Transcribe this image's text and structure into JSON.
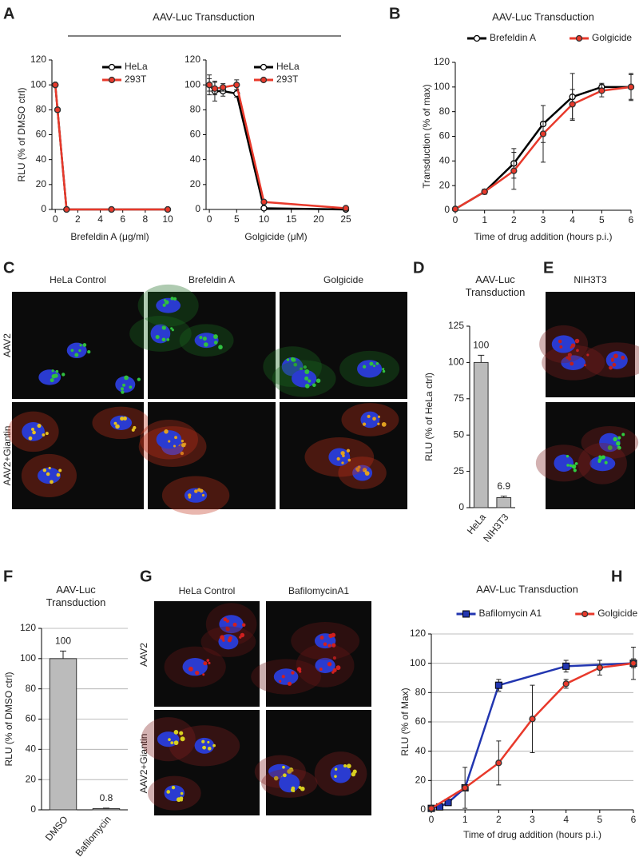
{
  "figure": {
    "letters": [
      "A",
      "B",
      "C",
      "D",
      "E",
      "F",
      "G",
      "H"
    ],
    "panel_a_title": "AAV-Luc Transduction",
    "panel_c": {
      "columns": [
        "HeLa Control",
        "Brefeldin A",
        "Golgicide"
      ],
      "rows": [
        "AAV2",
        "AAV2+Giantin"
      ]
    },
    "panel_e": {
      "columns": [
        "NIH3T3"
      ]
    },
    "panel_g": {
      "columns": [
        "HeLa Control",
        "BafilomycinA1"
      ],
      "rows": [
        "AAV2",
        "AAV2+Giantin"
      ]
    }
  },
  "chart_data": [
    {
      "type": "line",
      "xlabel": "Brefeldin A (μg/ml)",
      "ylabel": "RLU (% of DMSO ctrl)",
      "x": [
        0,
        0.2,
        1,
        5,
        10
      ],
      "xlim": [
        -0.3,
        10
      ],
      "xticks": [
        0,
        2,
        4,
        6,
        8,
        10
      ],
      "ylim": [
        0,
        120
      ],
      "yticks": [
        0,
        20,
        40,
        60,
        80,
        100,
        120
      ],
      "legend": "top-right",
      "series": [
        {
          "name": "HeLa",
          "color": "#000000",
          "marker": "open-circle",
          "values": [
            100,
            80,
            0,
            0,
            0
          ]
        },
        {
          "name": "293T",
          "color": "#e8392b",
          "marker": "circle",
          "values": [
            100,
            80,
            0,
            0,
            0
          ]
        }
      ]
    },
    {
      "type": "line",
      "xlabel": "Golgicide (μM)",
      "x": [
        0,
        1,
        2.5,
        5,
        10,
        25
      ],
      "xlim": [
        -0.6,
        25
      ],
      "xticks": [
        0,
        5,
        10,
        15,
        20,
        25
      ],
      "ylim": [
        0,
        120
      ],
      "yticks": [
        0,
        20,
        40,
        60,
        80,
        100,
        120
      ],
      "legend": "top-right",
      "series": [
        {
          "name": "HeLa",
          "color": "#000000",
          "marker": "open-circle",
          "values": [
            100,
            95,
            95,
            93,
            1,
            0
          ],
          "errors": [
            5,
            8,
            4,
            3,
            0,
            0
          ]
        },
        {
          "name": "293T",
          "color": "#e8392b",
          "marker": "circle",
          "values": [
            100,
            97,
            98,
            100,
            6,
            1
          ],
          "errors": [
            8,
            5,
            3,
            4,
            1,
            1
          ]
        }
      ]
    },
    {
      "type": "line",
      "title": "AAV-Luc Transduction",
      "xlabel": "Time of drug addition (hours p.i.)",
      "ylabel": "Transduction (% of max)",
      "x": [
        0,
        1,
        2,
        3,
        4,
        5,
        6
      ],
      "xlim": [
        0,
        6
      ],
      "xticks": [
        0,
        1,
        2,
        3,
        4,
        5,
        6
      ],
      "ylim": [
        0,
        120
      ],
      "yticks": [
        0,
        20,
        40,
        60,
        80,
        100,
        120
      ],
      "legend": "top",
      "series": [
        {
          "name": "Brefeldin A",
          "color": "#000000",
          "marker": "open-circle",
          "values": [
            1,
            15,
            38,
            70,
            92,
            100,
            100
          ],
          "errors": [
            0,
            2,
            12,
            15,
            19,
            3,
            11
          ]
        },
        {
          "name": "Golgicide",
          "color": "#e8392b",
          "marker": "circle",
          "values": [
            1,
            15,
            32,
            62,
            86,
            97,
            100
          ],
          "errors": [
            0,
            2,
            15,
            23,
            12,
            5,
            10
          ]
        }
      ]
    },
    {
      "type": "bar",
      "title": "AAV-Luc Transduction",
      "ylabel": "RLU (% of HeLa ctrl)",
      "categories": [
        "HeLa",
        "NIH3T3"
      ],
      "values": [
        100,
        6.9
      ],
      "errors": [
        5,
        1
      ],
      "color": "#bbbbbb",
      "ylim": [
        0,
        125
      ],
      "yticks": [
        0,
        25,
        50,
        75,
        100,
        125
      ],
      "grid": false
    },
    {
      "type": "bar",
      "title": "AAV-Luc Transduction",
      "ylabel": "RLU (% of DMSO ctrl)",
      "categories": [
        "DMSO",
        "Bafilomycin"
      ],
      "values": [
        100,
        0.8
      ],
      "errors": [
        5,
        0.3
      ],
      "color": "#bbbbbb",
      "ylim": [
        0,
        120
      ],
      "yticks": [
        0,
        20,
        40,
        60,
        80,
        100,
        120
      ],
      "grid": true
    },
    {
      "type": "line",
      "title": "AAV-Luc Transduction",
      "xlabel": "Time of drug addition (hours p.i.)",
      "ylabel": "RLU (% of Max)",
      "xlim": [
        0,
        6
      ],
      "xticks": [
        0,
        1,
        2,
        3,
        4,
        5,
        6
      ],
      "ylim": [
        0,
        120
      ],
      "yticks": [
        0,
        20,
        40,
        60,
        80,
        100,
        120
      ],
      "legend": "top",
      "grid": true,
      "series": [
        {
          "name": "Bafilomycin A1",
          "color": "#2236b0",
          "marker": "square",
          "x": [
            0,
            0.25,
            0.5,
            1,
            2,
            4,
            6
          ],
          "values": [
            1,
            2,
            5,
            15,
            85,
            98,
            100
          ],
          "errors": [
            1,
            1,
            1,
            14,
            4,
            4,
            3
          ]
        },
        {
          "name": "Golgicide",
          "color": "#e8392b",
          "marker": "circle",
          "x": [
            0,
            1,
            2,
            3,
            4,
            5,
            6
          ],
          "values": [
            1,
            15,
            32,
            62,
            86,
            97,
            100
          ],
          "errors": [
            1,
            2,
            15,
            23,
            3,
            5,
            11
          ]
        }
      ]
    }
  ]
}
